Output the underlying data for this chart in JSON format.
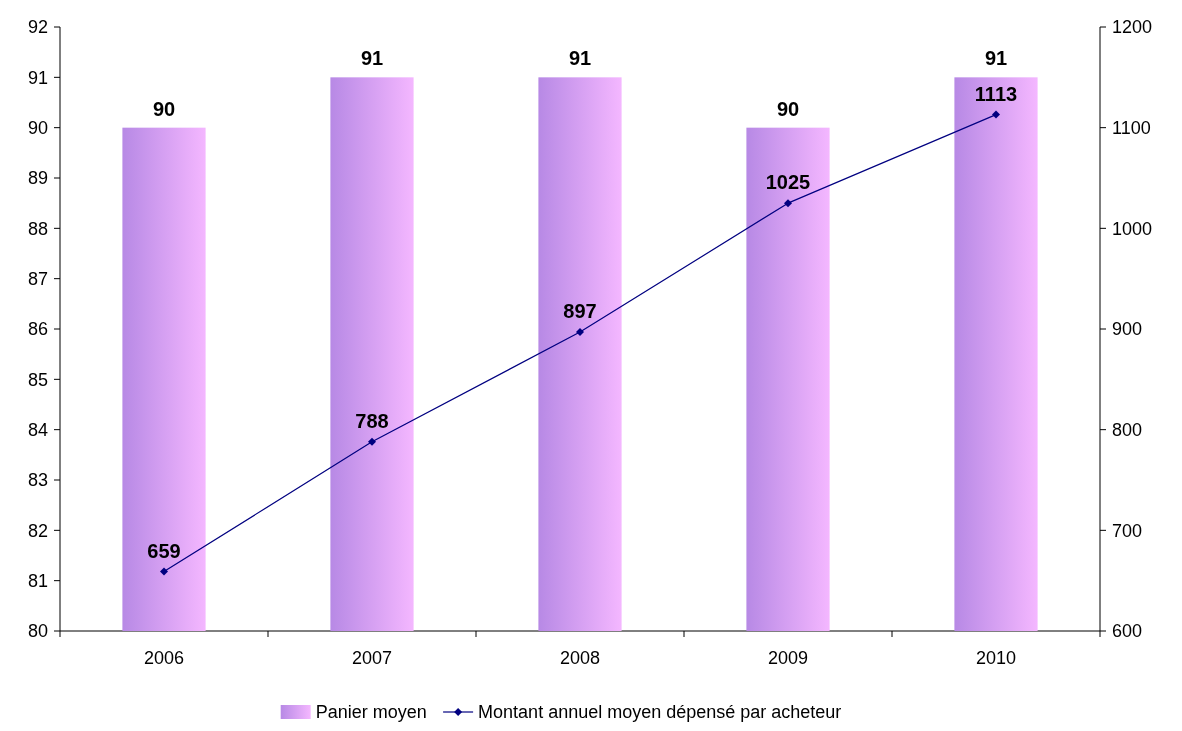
{
  "chart_data": {
    "type": "bar",
    "categories": [
      "2006",
      "2007",
      "2008",
      "2009",
      "2010"
    ],
    "series": [
      {
        "name": "Panier moyen",
        "color": "#cc99ff",
        "values": [
          90,
          91,
          91,
          90,
          91
        ]
      },
      {
        "name": "Montant annuel moyen dépensé par acheteur",
        "type": "line",
        "axis": "y2",
        "color": "#000080",
        "marker": "diamond",
        "values": [
          659,
          788,
          897,
          1025,
          1113
        ]
      }
    ],
    "ylim": [
      80,
      92
    ],
    "yticks": [
      80,
      81,
      82,
      83,
      84,
      85,
      86,
      87,
      88,
      89,
      90,
      91,
      92
    ],
    "y2lim": [
      600,
      1200
    ],
    "y2ticks": [
      600,
      700,
      800,
      900,
      1000,
      1100,
      1200
    ],
    "data_labels": true,
    "legend": "bottom",
    "grid": false
  }
}
